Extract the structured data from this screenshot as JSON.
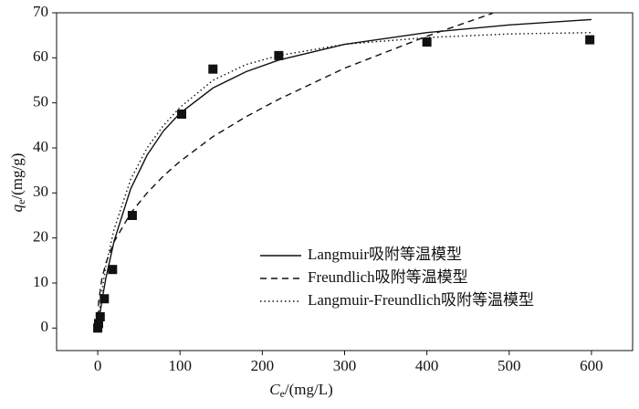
{
  "chart_data": {
    "type": "scatter",
    "x_label": {
      "symbol": "C",
      "subscript": "e",
      "unit": "/(mg/L)"
    },
    "y_label": {
      "symbol": "q",
      "subscript": "e",
      "unit": "/(mg/g)"
    },
    "xlim": [
      -50,
      650
    ],
    "ylim": [
      -5,
      70
    ],
    "xticks": [
      0,
      100,
      200,
      300,
      400,
      500,
      600
    ],
    "yticks": [
      0,
      10,
      20,
      30,
      40,
      50,
      60,
      70
    ],
    "legend": "lower right",
    "points": {
      "color": "#111111",
      "x": [
        0,
        1,
        3,
        8,
        18,
        42,
        102,
        140,
        220,
        400,
        598
      ],
      "values": [
        0,
        1,
        2.5,
        6.5,
        13,
        25,
        47.5,
        57.5,
        60.5,
        63.5,
        64
      ]
    },
    "series": [
      {
        "name": "Langmuir吸附等温模型",
        "color": "#111111",
        "style": "solid",
        "x": [
          0,
          5,
          10,
          20,
          40,
          60,
          80,
          100,
          140,
          180,
          220,
          300,
          400,
          500,
          600
        ],
        "values": [
          0,
          6.0,
          11.2,
          19.4,
          30.9,
          38.4,
          43.8,
          47.7,
          53.3,
          56.9,
          59.5,
          63,
          65.6,
          67.3,
          68.5
        ]
      },
      {
        "name": "Freundlich吸附等温模型",
        "color": "#111111",
        "style": "dashed",
        "x": [
          0,
          1,
          5,
          10,
          20,
          40,
          60,
          80,
          100,
          140,
          180,
          220,
          300,
          400,
          480
        ],
        "values": [
          0,
          5.7,
          10.9,
          14.5,
          19.2,
          25.5,
          30.0,
          33.8,
          37.0,
          42.5,
          46.9,
          50.8,
          57.7,
          64.8,
          69.9
        ]
      },
      {
        "name": "Langmuir-Freundlich吸附等温模型",
        "color": "#111111",
        "style": "dotted",
        "x": [
          0,
          5,
          10,
          20,
          40,
          60,
          80,
          100,
          140,
          180,
          220,
          300,
          400,
          500,
          600
        ],
        "values": [
          0,
          8,
          14,
          22,
          33,
          40,
          45,
          49,
          55,
          58.5,
          60.5,
          63,
          64.5,
          65.3,
          65.6
        ]
      }
    ]
  }
}
